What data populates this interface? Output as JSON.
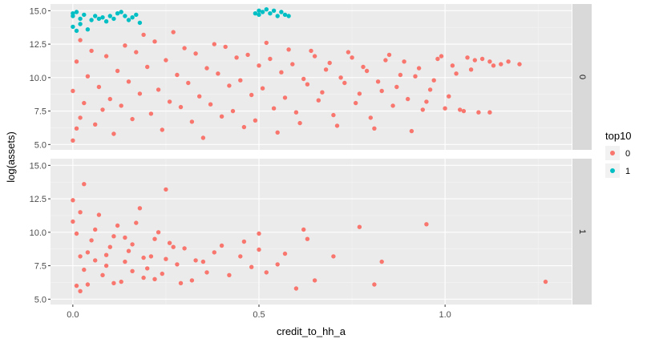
{
  "chart_data": {
    "type": "scatter",
    "xlabel": "credit_to_hh_a",
    "ylabel": "log(assets)",
    "x_ticks": [
      0.0,
      0.5,
      1.0
    ],
    "x_tick_labels": [
      "0.0",
      "0.5",
      "1.0"
    ],
    "xlim": [
      -0.06,
      1.34
    ],
    "y_ticks": [
      5.0,
      7.5,
      10.0,
      12.5,
      15.0
    ],
    "y_tick_labels": [
      "5.0",
      "7.5",
      "10.0",
      "12.5",
      "15.0"
    ],
    "ylim": [
      4.6,
      15.5
    ],
    "grid": true,
    "legend": {
      "title": "top10",
      "position": "right",
      "entries": [
        {
          "label": "0",
          "color": "#F8766D"
        },
        {
          "label": "1",
          "color": "#00BFC4"
        }
      ]
    },
    "facets": [
      {
        "strip_label": "0",
        "series": [
          {
            "key": "0",
            "color": "#F8766D",
            "points": [
              [
                0.0,
                5.3
              ],
              [
                0.01,
                6.2
              ],
              [
                0.02,
                7.0
              ],
              [
                0.03,
                8.1
              ],
              [
                0.0,
                9.0
              ],
              [
                0.04,
                10.1
              ],
              [
                0.01,
                11.2
              ],
              [
                0.05,
                12.0
              ],
              [
                0.02,
                12.8
              ],
              [
                0.06,
                6.5
              ],
              [
                0.08,
                7.6
              ],
              [
                0.1,
                8.4
              ],
              [
                0.07,
                9.3
              ],
              [
                0.12,
                10.5
              ],
              [
                0.09,
                11.6
              ],
              [
                0.14,
                12.4
              ],
              [
                0.11,
                5.8
              ],
              [
                0.16,
                6.9
              ],
              [
                0.13,
                7.9
              ],
              [
                0.18,
                8.8
              ],
              [
                0.15,
                9.7
              ],
              [
                0.2,
                10.8
              ],
              [
                0.17,
                11.9
              ],
              [
                0.22,
                12.7
              ],
              [
                0.19,
                13.2
              ],
              [
                0.24,
                6.1
              ],
              [
                0.21,
                7.3
              ],
              [
                0.26,
                8.2
              ],
              [
                0.23,
                9.1
              ],
              [
                0.28,
                10.2
              ],
              [
                0.25,
                11.3
              ],
              [
                0.3,
                12.2
              ],
              [
                0.27,
                13.4
              ],
              [
                0.32,
                6.7
              ],
              [
                0.29,
                7.8
              ],
              [
                0.34,
                8.6
              ],
              [
                0.31,
                9.6
              ],
              [
                0.36,
                10.7
              ],
              [
                0.33,
                11.8
              ],
              [
                0.38,
                12.5
              ],
              [
                0.35,
                5.5
              ],
              [
                0.4,
                7.1
              ],
              [
                0.37,
                8.0
              ],
              [
                0.42,
                9.4
              ],
              [
                0.39,
                10.3
              ],
              [
                0.44,
                11.5
              ],
              [
                0.41,
                12.3
              ],
              [
                0.46,
                6.3
              ],
              [
                0.43,
                7.5
              ],
              [
                0.48,
                8.7
              ],
              [
                0.45,
                9.8
              ],
              [
                0.5,
                10.9
              ],
              [
                0.47,
                11.7
              ],
              [
                0.52,
                12.6
              ],
              [
                0.49,
                6.8
              ],
              [
                0.54,
                7.7
              ],
              [
                0.51,
                9.2
              ],
              [
                0.56,
                10.4
              ],
              [
                0.53,
                11.4
              ],
              [
                0.58,
                12.1
              ],
              [
                0.55,
                5.9
              ],
              [
                0.6,
                7.4
              ],
              [
                0.57,
                8.5
              ],
              [
                0.62,
                9.9
              ],
              [
                0.59,
                11.0
              ],
              [
                0.64,
                12.0
              ],
              [
                0.61,
                6.6
              ],
              [
                0.66,
                8.3
              ],
              [
                0.63,
                9.5
              ],
              [
                0.68,
                10.6
              ],
              [
                0.65,
                11.6
              ],
              [
                0.7,
                7.2
              ],
              [
                0.67,
                8.9
              ],
              [
                0.72,
                10.0
              ],
              [
                0.69,
                11.1
              ],
              [
                0.74,
                11.9
              ],
              [
                0.71,
                6.4
              ],
              [
                0.76,
                8.1
              ],
              [
                0.73,
                9.6
              ],
              [
                0.78,
                10.8
              ],
              [
                0.75,
                11.5
              ],
              [
                0.8,
                7.0
              ],
              [
                0.77,
                8.8
              ],
              [
                0.82,
                9.7
              ],
              [
                0.79,
                10.5
              ],
              [
                0.84,
                11.3
              ],
              [
                0.81,
                6.2
              ],
              [
                0.86,
                7.9
              ],
              [
                0.83,
                9.0
              ],
              [
                0.88,
                10.2
              ],
              [
                0.85,
                11.7
              ],
              [
                0.9,
                8.4
              ],
              [
                0.87,
                9.3
              ],
              [
                0.92,
                10.1
              ],
              [
                0.89,
                11.2
              ],
              [
                0.94,
                7.6
              ],
              [
                0.91,
                6.0
              ],
              [
                0.96,
                9.1
              ],
              [
                0.93,
                10.7
              ],
              [
                0.98,
                11.4
              ],
              [
                0.95,
                8.2
              ],
              [
                1.0,
                7.7
              ],
              [
                0.97,
                9.8
              ],
              [
                1.02,
                10.9
              ],
              [
                0.99,
                11.6
              ],
              [
                1.04,
                7.6
              ],
              [
                1.01,
                8.6
              ],
              [
                1.06,
                11.5
              ],
              [
                1.03,
                10.3
              ],
              [
                1.08,
                11.3
              ],
              [
                1.05,
                7.5
              ],
              [
                1.1,
                11.4
              ],
              [
                1.07,
                10.6
              ],
              [
                1.12,
                11.2
              ],
              [
                1.09,
                7.4
              ],
              [
                1.15,
                11.0
              ],
              [
                1.2,
                11.0
              ],
              [
                1.17,
                11.2
              ],
              [
                1.12,
                7.4
              ],
              [
                1.13,
                10.9
              ]
            ]
          },
          {
            "key": "1",
            "color": "#00BFC4",
            "points": [
              [
                0.0,
                14.6
              ],
              [
                0.0,
                14.8
              ],
              [
                0.01,
                14.9
              ],
              [
                0.02,
                14.4
              ],
              [
                0.0,
                13.8
              ],
              [
                0.01,
                13.5
              ],
              [
                0.02,
                14.0
              ],
              [
                0.03,
                14.7
              ],
              [
                0.04,
                13.6
              ],
              [
                0.05,
                14.3
              ],
              [
                0.08,
                14.5
              ],
              [
                0.09,
                14.2
              ],
              [
                0.1,
                14.6
              ],
              [
                0.11,
                14.4
              ],
              [
                0.12,
                14.8
              ],
              [
                0.13,
                14.9
              ],
              [
                0.14,
                14.6
              ],
              [
                0.15,
                14.3
              ],
              [
                0.16,
                14.5
              ],
              [
                0.17,
                14.7
              ],
              [
                0.18,
                14.1
              ],
              [
                0.07,
                14.4
              ],
              [
                0.06,
                14.6
              ],
              [
                0.5,
                15.0
              ],
              [
                0.51,
                14.9
              ],
              [
                0.52,
                15.1
              ],
              [
                0.53,
                14.8
              ],
              [
                0.54,
                15.0
              ],
              [
                0.55,
                14.6
              ],
              [
                0.56,
                14.9
              ],
              [
                0.57,
                14.7
              ],
              [
                0.58,
                14.6
              ],
              [
                0.49,
                14.8
              ],
              [
                0.5,
                14.7
              ]
            ]
          }
        ]
      },
      {
        "strip_label": "1",
        "series": [
          {
            "key": "0",
            "color": "#F8766D",
            "points": [
              [
                0.0,
                12.4
              ],
              [
                0.02,
                11.5
              ],
              [
                0.03,
                13.6
              ],
              [
                0.0,
                10.8
              ],
              [
                0.01,
                6.0
              ],
              [
                0.02,
                5.6
              ],
              [
                0.03,
                7.2
              ],
              [
                0.04,
                8.5
              ],
              [
                0.05,
                9.4
              ],
              [
                0.06,
                10.2
              ],
              [
                0.07,
                11.3
              ],
              [
                0.08,
                6.8
              ],
              [
                0.09,
                7.5
              ],
              [
                0.1,
                8.9
              ],
              [
                0.11,
                9.7
              ],
              [
                0.12,
                10.5
              ],
              [
                0.13,
                6.3
              ],
              [
                0.14,
                7.8
              ],
              [
                0.15,
                8.6
              ],
              [
                0.16,
                9.1
              ],
              [
                0.17,
                10.7
              ],
              [
                0.18,
                11.8
              ],
              [
                0.19,
                6.6
              ],
              [
                0.2,
                7.3
              ],
              [
                0.21,
                8.2
              ],
              [
                0.22,
                9.5
              ],
              [
                0.23,
                10.0
              ],
              [
                0.24,
                6.9
              ],
              [
                0.25,
                8.0
              ],
              [
                0.25,
                13.2
              ],
              [
                0.26,
                9.2
              ],
              [
                0.28,
                7.6
              ],
              [
                0.3,
                8.8
              ],
              [
                0.32,
                6.4
              ],
              [
                0.35,
                7.8
              ],
              [
                0.38,
                8.5
              ],
              [
                0.4,
                9.0
              ],
              [
                0.42,
                6.8
              ],
              [
                0.45,
                8.2
              ],
              [
                0.46,
                9.3
              ],
              [
                0.48,
                7.4
              ],
              [
                0.5,
                9.9
              ],
              [
                0.5,
                8.7
              ],
              [
                0.52,
                7.0
              ],
              [
                0.55,
                7.6
              ],
              [
                0.57,
                8.4
              ],
              [
                0.6,
                5.8
              ],
              [
                0.62,
                10.2
              ],
              [
                0.63,
                9.5
              ],
              [
                0.65,
                6.4
              ],
              [
                0.7,
                8.2
              ],
              [
                0.77,
                10.4
              ],
              [
                0.81,
                6.1
              ],
              [
                0.83,
                7.8
              ],
              [
                0.95,
                10.6
              ],
              [
                1.27,
                6.3
              ],
              [
                0.04,
                6.1
              ],
              [
                0.06,
                7.9
              ],
              [
                0.09,
                8.3
              ],
              [
                0.11,
                6.2
              ],
              [
                0.14,
                9.6
              ],
              [
                0.16,
                7.1
              ],
              [
                0.19,
                8.1
              ],
              [
                0.22,
                6.5
              ],
              [
                0.27,
                8.9
              ],
              [
                0.29,
                6.2
              ],
              [
                0.33,
                7.9
              ],
              [
                0.36,
                7.0
              ],
              [
                0.01,
                9.9
              ],
              [
                0.02,
                8.2
              ]
            ]
          }
        ]
      }
    ]
  }
}
